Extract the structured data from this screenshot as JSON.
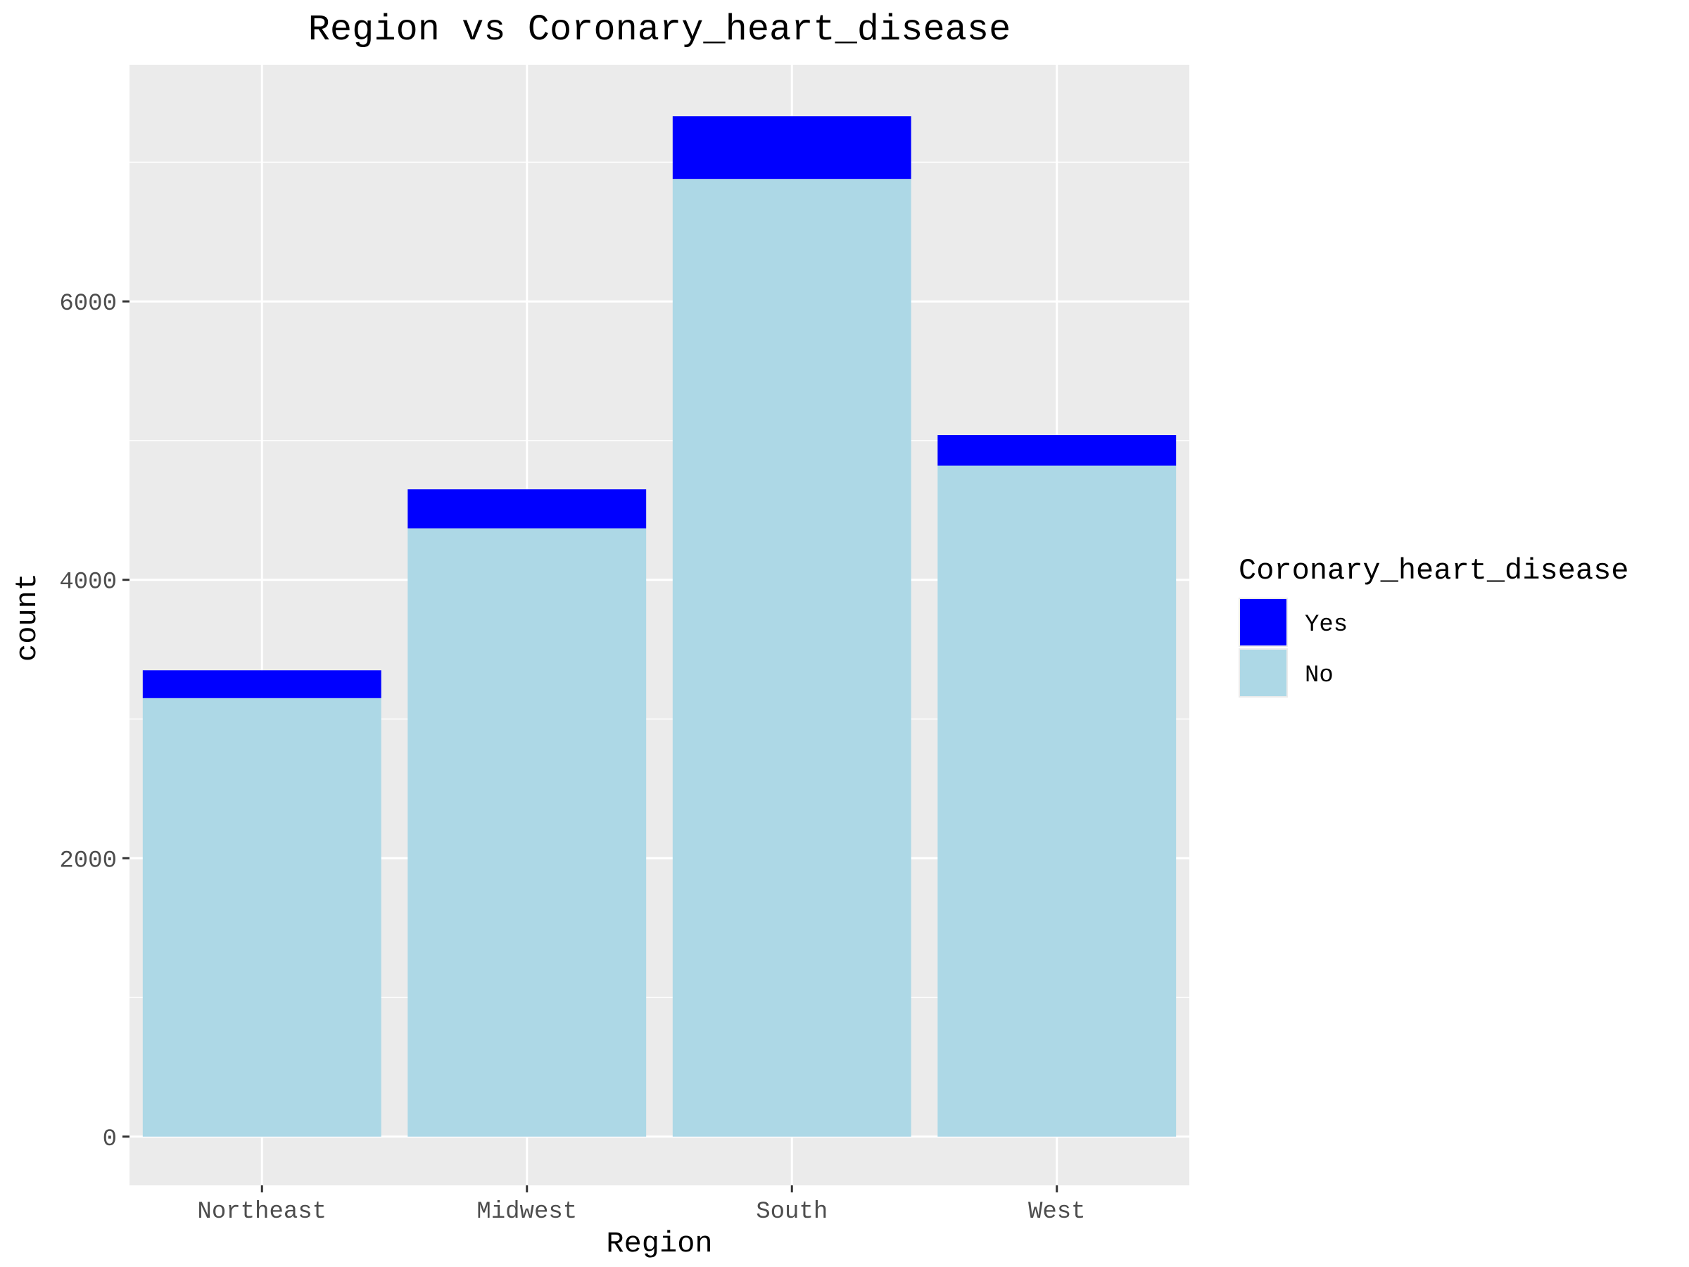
{
  "chart_data": {
    "type": "bar",
    "stacked": true,
    "title": "Region vs Coronary_heart_disease",
    "xlabel": "Region",
    "ylabel": "count",
    "categories": [
      "Northeast",
      "Midwest",
      "South",
      "West"
    ],
    "series": [
      {
        "name": "No",
        "color": "#ADD8E6",
        "values": [
          3150,
          4370,
          6880,
          4820
        ]
      },
      {
        "name": "Yes",
        "color": "#0000FF",
        "values": [
          200,
          280,
          450,
          220
        ]
      }
    ],
    "ylim": [
      -350,
      7700
    ],
    "yticks": [
      0,
      2000,
      4000,
      6000
    ],
    "yminor": [
      1000,
      3000,
      5000,
      7000
    ],
    "legend": {
      "title": "Coronary_heart_disease",
      "position": "right",
      "entries": [
        {
          "label": "Yes",
          "color": "#0000FF"
        },
        {
          "label": "No",
          "color": "#ADD8E6"
        }
      ]
    },
    "grid": true,
    "panel_background": "#EBEBEB",
    "grid_color": "#FFFFFF"
  }
}
